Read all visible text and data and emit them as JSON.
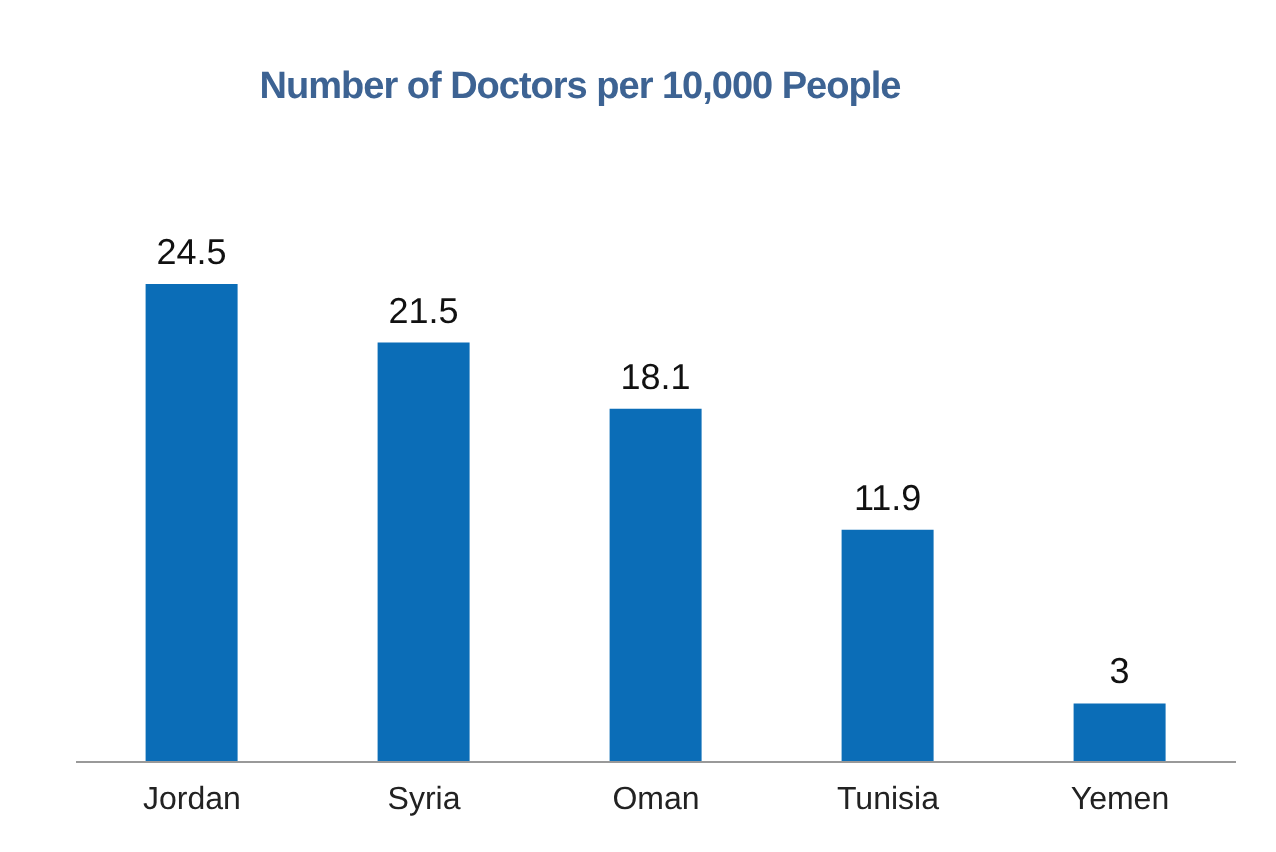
{
  "chart_data": {
    "type": "bar",
    "title": "Number of Doctors per 10,000 People",
    "categories": [
      "Jordan",
      "Syria",
      "Oman",
      "Tunisia",
      "Yemen"
    ],
    "values": [
      24.5,
      21.5,
      18.1,
      11.9,
      3
    ],
    "color": "#0b6db7",
    "data_labels": true,
    "grid": false,
    "legend": false
  }
}
